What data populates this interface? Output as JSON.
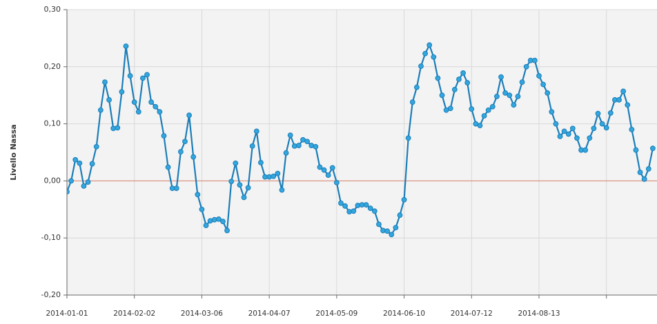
{
  "chart_data": {
    "type": "line",
    "y_label": "Livello Nassa",
    "x": [
      "2014-01-01",
      "2014-01-03",
      "2014-01-05",
      "2014-01-07",
      "2014-01-09",
      "2014-01-11",
      "2014-01-13",
      "2014-01-15",
      "2014-01-17",
      "2014-01-19",
      "2014-01-21",
      "2014-01-23",
      "2014-01-25",
      "2014-01-27",
      "2014-01-29",
      "2014-01-31",
      "2014-02-02",
      "2014-02-04",
      "2014-02-06",
      "2014-02-08",
      "2014-02-10",
      "2014-02-12",
      "2014-02-14",
      "2014-02-16",
      "2014-02-18",
      "2014-02-20",
      "2014-02-22",
      "2014-02-24",
      "2014-02-26",
      "2014-02-28",
      "2014-03-02",
      "2014-03-04",
      "2014-03-06",
      "2014-03-08",
      "2014-03-10",
      "2014-03-12",
      "2014-03-14",
      "2014-03-16",
      "2014-03-18",
      "2014-03-20",
      "2014-03-22",
      "2014-03-24",
      "2014-03-26",
      "2014-03-28",
      "2014-03-30",
      "2014-04-01",
      "2014-04-03",
      "2014-04-05",
      "2014-04-07",
      "2014-04-09",
      "2014-04-11",
      "2014-04-13",
      "2014-04-15",
      "2014-04-17",
      "2014-04-19",
      "2014-04-21",
      "2014-04-23",
      "2014-04-25",
      "2014-04-27",
      "2014-04-29",
      "2014-05-01",
      "2014-05-03",
      "2014-05-05",
      "2014-05-07",
      "2014-05-09",
      "2014-05-11",
      "2014-05-13",
      "2014-05-15",
      "2014-05-17",
      "2014-05-19",
      "2014-05-21",
      "2014-05-23",
      "2014-05-25",
      "2014-05-27",
      "2014-05-29",
      "2014-05-31",
      "2014-06-02",
      "2014-06-04",
      "2014-06-06",
      "2014-06-08",
      "2014-06-10",
      "2014-06-12",
      "2014-06-14",
      "2014-06-16",
      "2014-06-18",
      "2014-06-20",
      "2014-06-22",
      "2014-06-24",
      "2014-06-26",
      "2014-06-28",
      "2014-06-30",
      "2014-07-02",
      "2014-07-04",
      "2014-07-06",
      "2014-07-08",
      "2014-07-10",
      "2014-07-12",
      "2014-07-14",
      "2014-07-16",
      "2014-07-18",
      "2014-07-20",
      "2014-07-22",
      "2014-07-24",
      "2014-07-26",
      "2014-07-28",
      "2014-07-30",
      "2014-08-01",
      "2014-08-03",
      "2014-08-05",
      "2014-08-07",
      "2014-08-09",
      "2014-08-11",
      "2014-08-13",
      "2014-08-15",
      "2014-08-17",
      "2014-08-19",
      "2014-08-21",
      "2014-08-23",
      "2014-08-25",
      "2014-08-27",
      "2014-08-29",
      "2014-08-31",
      "2014-09-02",
      "2014-09-04",
      "2014-09-06",
      "2014-09-08",
      "2014-09-10",
      "2014-09-12",
      "2014-09-14",
      "2014-09-16",
      "2014-09-18",
      "2014-09-20",
      "2014-09-22",
      "2014-09-24",
      "2014-09-26",
      "2014-09-28",
      "2014-09-30",
      "2014-10-02",
      "2014-10-04",
      "2014-10-06"
    ],
    "series": [
      {
        "color": "#1b7db8",
        "marker_color": "#33a6dd",
        "values": [
          -0.019,
          0.0,
          0.037,
          0.031,
          -0.009,
          -0.002,
          0.03,
          0.06,
          0.124,
          0.173,
          0.142,
          0.092,
          0.093,
          0.156,
          0.236,
          0.184,
          0.138,
          0.121,
          0.18,
          0.186,
          0.138,
          0.13,
          0.121,
          0.079,
          0.024,
          -0.013,
          -0.013,
          0.051,
          0.069,
          0.115,
          0.042,
          -0.024,
          -0.05,
          -0.078,
          -0.07,
          -0.068,
          -0.067,
          -0.071,
          -0.087,
          -0.001,
          0.031,
          -0.007,
          -0.029,
          -0.012,
          0.061,
          0.087,
          0.032,
          0.007,
          0.007,
          0.008,
          0.013,
          -0.016,
          0.049,
          0.08,
          0.061,
          0.062,
          0.072,
          0.069,
          0.062,
          0.06,
          0.024,
          0.019,
          0.01,
          0.023,
          -0.003,
          -0.039,
          -0.044,
          -0.054,
          -0.053,
          -0.043,
          -0.042,
          -0.042,
          -0.048,
          -0.053,
          -0.076,
          -0.087,
          -0.088,
          -0.094,
          -0.082,
          -0.06,
          -0.033,
          0.075,
          0.138,
          0.164,
          0.201,
          0.223,
          0.238,
          0.217,
          0.18,
          0.15,
          0.124,
          0.127,
          0.16,
          0.178,
          0.189,
          0.172,
          0.126,
          0.1,
          0.097,
          0.114,
          0.124,
          0.13,
          0.148,
          0.182,
          0.154,
          0.15,
          0.133,
          0.148,
          0.173,
          0.2,
          0.211,
          0.211,
          0.184,
          0.169,
          0.154,
          0.121,
          0.1,
          0.078,
          0.087,
          0.082,
          0.092,
          0.075,
          0.054,
          0.054,
          0.075,
          0.092,
          0.118,
          0.1,
          0.093,
          0.119,
          0.142,
          0.142,
          0.157,
          0.133,
          0.09,
          0.054,
          0.015,
          0.003,
          0.021,
          0.057
        ]
      }
    ],
    "xlim": [
      "2014-01-01",
      "2014-10-08"
    ],
    "xticks": [
      "2014-01-01",
      "2014-02-02",
      "2014-03-06",
      "2014-04-07",
      "2014-05-09",
      "2014-06-10",
      "2014-07-12",
      "2014-08-13",
      {
        "value": "2014-09-14",
        "label": null
      }
    ],
    "ylim": [
      -0.2,
      0.3
    ],
    "yticks": [
      {
        "value": -0.2,
        "label": "-0,20"
      },
      {
        "value": -0.1,
        "label": "-0,10"
      },
      {
        "value": 0,
        "label": "0,00"
      },
      {
        "value": 0.1,
        "label": "0,10"
      },
      {
        "value": 0.2,
        "label": "0,20"
      },
      {
        "value": 0.3,
        "label": "0,30"
      }
    ],
    "hlines": [
      {
        "value": 0,
        "color": "#d9826b"
      }
    ],
    "grid": true,
    "plot_background": "#f3f3f3"
  }
}
